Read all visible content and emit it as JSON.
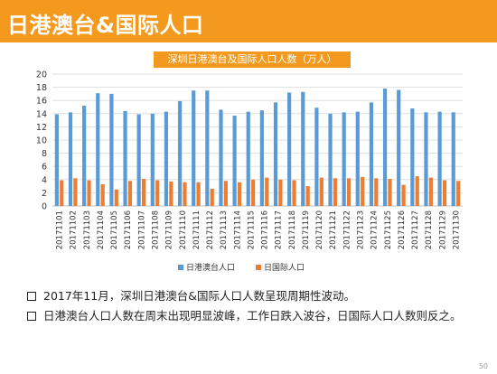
{
  "header": {
    "title": "日港澳台&国际人口"
  },
  "chart_data": {
    "type": "bar",
    "title": "深圳日港澳台及国际人口人数（万人）",
    "categories": [
      "20171101",
      "20171102",
      "20171103",
      "20171104",
      "20171105",
      "20171106",
      "20171107",
      "20171108",
      "20171109",
      "20171110",
      "20171111",
      "20171112",
      "20171113",
      "20171114",
      "20171115",
      "20171116",
      "20171117",
      "20171118",
      "20171119",
      "20171120",
      "20171121",
      "20171122",
      "20171123",
      "20171124",
      "20171125",
      "20171126",
      "20171127",
      "20171128",
      "20171129",
      "20171130"
    ],
    "series": [
      {
        "name": "日港澳台人口",
        "color": "#5b9bd5",
        "values": [
          13.9,
          14.2,
          15.2,
          17.1,
          17.0,
          14.4,
          13.9,
          14.0,
          14.3,
          15.9,
          17.5,
          17.5,
          14.6,
          13.7,
          14.3,
          14.5,
          15.7,
          17.2,
          17.3,
          14.9,
          14.0,
          14.2,
          14.3,
          15.7,
          17.8,
          17.6,
          14.8,
          14.2,
          14.3,
          14.2
        ]
      },
      {
        "name": "日国际人口",
        "color": "#ed7d31",
        "values": [
          3.9,
          4.2,
          3.9,
          3.3,
          2.5,
          3.8,
          4.1,
          3.9,
          3.7,
          3.6,
          3.6,
          2.6,
          3.8,
          3.6,
          4.0,
          4.3,
          4.0,
          3.9,
          3.0,
          4.3,
          4.2,
          4.2,
          4.4,
          4.2,
          4.1,
          3.2,
          4.5,
          4.3,
          3.9,
          3.8
        ]
      }
    ],
    "ylim": [
      0,
      20
    ],
    "yticks": [
      0,
      2,
      4,
      6,
      8,
      10,
      12,
      14,
      16,
      18,
      20
    ],
    "grid": true,
    "legend_position": "bottom"
  },
  "bullets": [
    "2017年11月，深圳日港澳台&国际人口人数呈现周期性波动。",
    "日港澳台人口人数在周末出现明显波峰，工作日跌入波谷，日国际人口人数则反之。"
  ],
  "page_number": "50"
}
